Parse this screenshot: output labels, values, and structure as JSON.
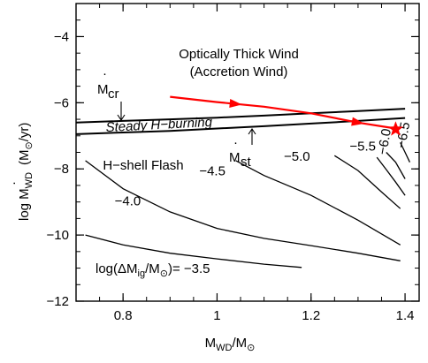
{
  "chart_data": {
    "type": "line",
    "xlim": [
      0.7,
      1.43
    ],
    "ylim": [
      -12,
      -3
    ],
    "x_ticks": [
      0.8,
      1,
      1.2,
      1.4
    ],
    "x_tick_labels": [
      "0.8",
      "1",
      "1.2",
      "1.4"
    ],
    "y_ticks": [
      -12,
      -10,
      -8,
      -6,
      -4
    ],
    "y_tick_labels": [
      "−12",
      "−10",
      "−8",
      "−6",
      "−4"
    ],
    "xlabel": {
      "main": "M",
      "sub": "WD",
      "rest": "/M",
      "sun": "⊙"
    },
    "ylabel": {
      "log": "log ",
      "dot": "·",
      "main": "M",
      "sub": "WD",
      "unit": "(M",
      "sun": "⊙",
      "unit_end": "/yr)"
    },
    "upper_boundary": {
      "x": [
        0.7,
        0.8,
        0.9,
        1.0,
        1.1,
        1.2,
        1.3,
        1.4
      ],
      "y": [
        -6.6,
        -6.55,
        -6.5,
        -6.45,
        -6.39,
        -6.32,
        -6.25,
        -6.18
      ]
    },
    "lower_boundary": {
      "x": [
        0.7,
        0.8,
        0.9,
        1.0,
        1.1,
        1.2,
        1.3,
        1.4
      ],
      "y": [
        -6.95,
        -6.9,
        -6.85,
        -6.78,
        -6.71,
        -6.63,
        -6.55,
        -6.46
      ]
    },
    "evolution_track": {
      "x": [
        0.9,
        1.0,
        1.1,
        1.2,
        1.3,
        1.38
      ],
      "y": [
        -5.82,
        -5.98,
        -6.12,
        -6.32,
        -6.6,
        -6.78
      ],
      "arrow_x": [
        1.04,
        1.3
      ]
    },
    "endpoint": {
      "x": 1.38,
      "y": -6.8
    },
    "contours": [
      {
        "label": "-3.5",
        "x": [
          0.72,
          0.8,
          0.9,
          1.0,
          1.1,
          1.18
        ],
        "y": [
          -10.0,
          -10.3,
          -10.55,
          -10.72,
          -10.88,
          -10.98
        ]
      },
      {
        "label": "-4.0",
        "x": [
          0.72,
          0.8,
          0.9,
          1.0,
          1.1,
          1.2,
          1.3,
          1.39
        ],
        "y": [
          -7.75,
          -8.6,
          -9.3,
          -9.8,
          -10.1,
          -10.32,
          -10.55,
          -10.78
        ]
      },
      {
        "label": "-4.5",
        "x": [
          1.04,
          1.1,
          1.2,
          1.3,
          1.39
        ],
        "y": [
          -7.75,
          -8.2,
          -8.8,
          -9.55,
          -10.3
        ]
      },
      {
        "label": "-5.0",
        "x": [
          1.25,
          1.3,
          1.35,
          1.39
        ],
        "y": [
          -7.6,
          -8.05,
          -8.7,
          -9.2
        ]
      },
      {
        "label": "-5.5",
        "x": [
          1.34,
          1.36,
          1.38,
          1.4
        ],
        "y": [
          -7.65,
          -8.02,
          -8.4,
          -8.8
        ]
      },
      {
        "label": "-6.0",
        "x": [
          1.36,
          1.38,
          1.4
        ],
        "y": [
          -7.5,
          -7.8,
          -8.3
        ]
      },
      {
        "label": "-6.5",
        "x": [
          1.39,
          1.4,
          1.41
        ],
        "y": [
          -7.2,
          -7.5,
          -7.8
        ]
      }
    ],
    "contour_labels": [
      {
        "text": "−3.5",
        "x": 1.0,
        "y": -10.72
      },
      {
        "text": "−4.0",
        "x": 0.81,
        "y": -9.1
      },
      {
        "text": "−4.5",
        "x": 0.99,
        "y": -8.2
      },
      {
        "text": "−5.0",
        "x": 1.17,
        "y": -7.75
      },
      {
        "text": "−5.5",
        "x": 1.31,
        "y": -7.45
      },
      {
        "text": "−6.0",
        "x": 1.365,
        "y": -7.2,
        "rotate": -80
      },
      {
        "text": "−6.5",
        "x": 1.405,
        "y": -7.0,
        "rotate": -80
      }
    ]
  },
  "annotations": {
    "wind_line1": "Optically Thick Wind",
    "wind_line2": "(Accretion Wind)",
    "steady": "Steady H−burning",
    "flash": "H−shell Flash",
    "mcr_main": "M",
    "mcr_sub": "cr",
    "mst_main": "M",
    "mst_sub": "st",
    "legend_prefix": "log(ΔM",
    "legend_sub": "ig",
    "legend_mid": "/M",
    "legend_sun": "⊙",
    "legend_end": ")= −3.5"
  },
  "colors": {
    "axis": "#000000",
    "contour": "#000000",
    "track": "#ff0000",
    "star": "#ff0000",
    "wind_text": "#ff00ff",
    "steady_text": "#0000cc",
    "flash_text": "#00cc00"
  }
}
